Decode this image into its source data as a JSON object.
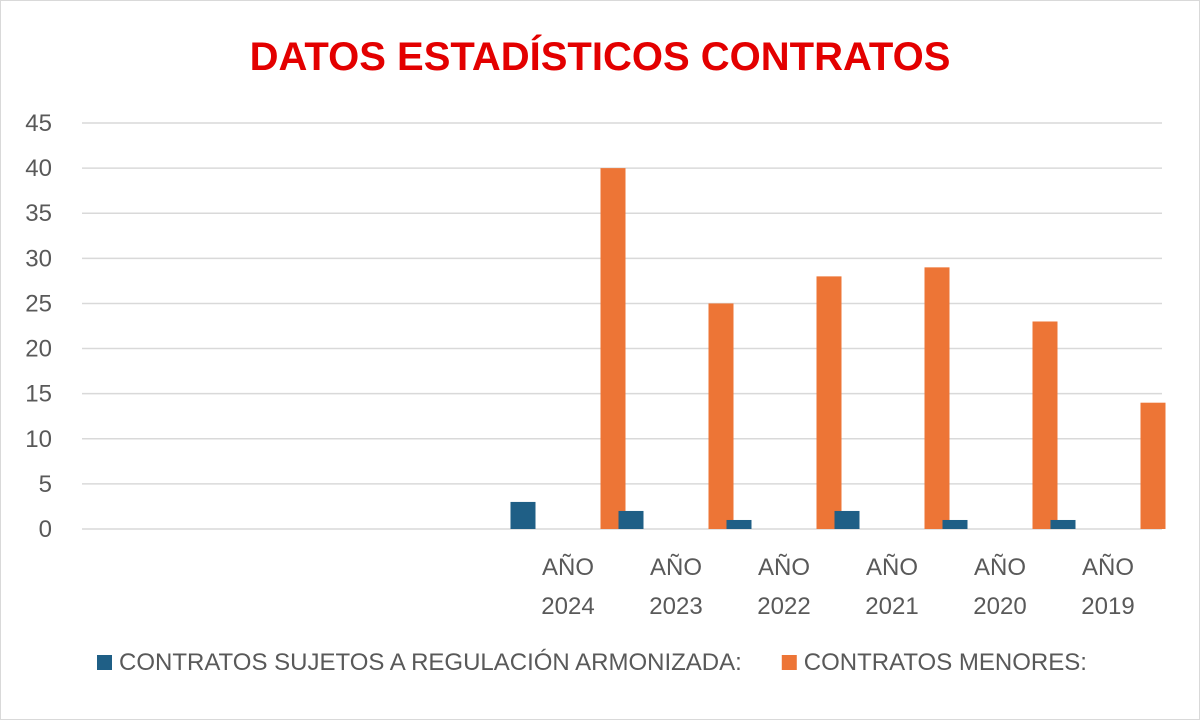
{
  "chart_data": {
    "type": "bar",
    "title": "DATOS ESTADÍSTICOS CONTRATOS",
    "xlabel": "",
    "ylabel": "",
    "categories": [
      [
        "AÑO",
        "2024"
      ],
      [
        "AÑO",
        "2023"
      ],
      [
        "AÑO",
        "2022"
      ],
      [
        "AÑO",
        "2021"
      ],
      [
        "AÑO",
        "2020"
      ],
      [
        "AÑO",
        "2019"
      ]
    ],
    "category_slots": 10,
    "first_category_slot": 4,
    "series": [
      {
        "name": "CONTRATOS SUJETOS A REGULACIÓN ARMONIZADA:",
        "color": "#1f5f86",
        "values": [
          3,
          2,
          1,
          2,
          1,
          1
        ]
      },
      {
        "name": "CONTRATOS MENORES:",
        "color": "#ed7536",
        "values": [
          40,
          25,
          28,
          29,
          23,
          14
        ]
      }
    ],
    "ylim": [
      0,
      45
    ],
    "yticks": [
      0,
      5,
      10,
      15,
      20,
      25,
      30,
      35,
      40,
      45
    ],
    "grid": true,
    "legend_position": "bottom",
    "colors": {
      "title": "#e30000",
      "grid": "#d9d9d9",
      "text": "#595959",
      "border": "#d9d9d9"
    }
  }
}
